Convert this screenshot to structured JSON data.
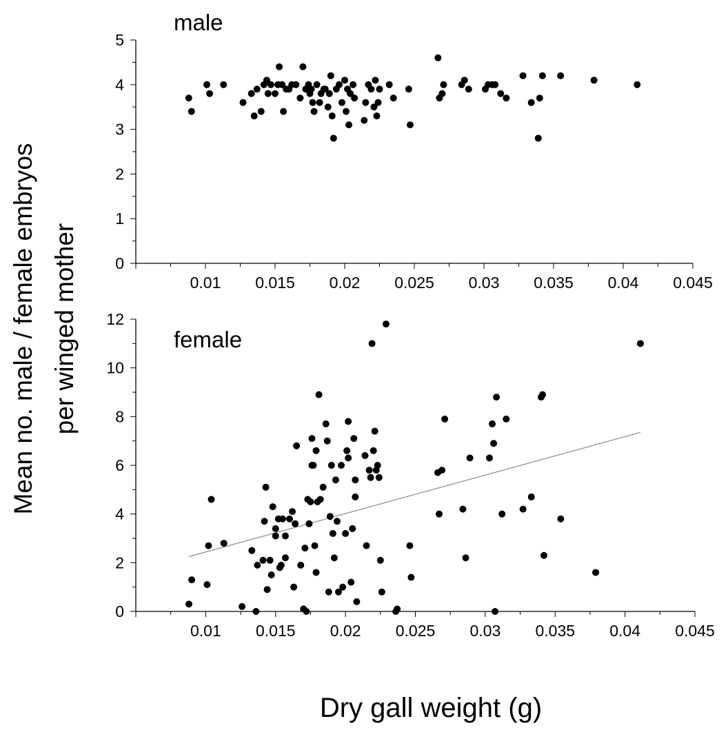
{
  "chart_data": {
    "type": "scatter",
    "xlabel": "Dry gall weight (g)",
    "ylabel": [
      "Mean no. male / female embryos",
      "per winged mother"
    ],
    "panels": [
      {
        "label": "male",
        "xlim": [
          0.005,
          0.045
        ],
        "xticks": [
          0.01,
          0.015,
          0.02,
          0.025,
          0.03,
          0.035,
          0.04,
          0.045
        ],
        "xtick_labels": [
          "0.01",
          "0.015",
          "0.02",
          "0.025",
          "0.03",
          "0.035",
          "0.04",
          "0.045"
        ],
        "ylim": [
          0,
          5
        ],
        "yticks": [
          0,
          1,
          2,
          3,
          4,
          5
        ],
        "ytick_labels": [
          "0",
          "1",
          "2",
          "3",
          "4",
          "5"
        ],
        "points": [
          [
            0.0088,
            3.7
          ],
          [
            0.009,
            3.4
          ],
          [
            0.0101,
            4.0
          ],
          [
            0.0103,
            3.8
          ],
          [
            0.0113,
            4.0
          ],
          [
            0.0127,
            3.6
          ],
          [
            0.0133,
            3.8
          ],
          [
            0.0135,
            3.3
          ],
          [
            0.0137,
            3.9
          ],
          [
            0.014,
            3.4
          ],
          [
            0.0142,
            4.0
          ],
          [
            0.0144,
            4.1
          ],
          [
            0.0145,
            3.8
          ],
          [
            0.0147,
            4.0
          ],
          [
            0.015,
            3.8
          ],
          [
            0.0152,
            4.0
          ],
          [
            0.0153,
            4.4
          ],
          [
            0.0155,
            4.0
          ],
          [
            0.0156,
            3.4
          ],
          [
            0.0158,
            3.9
          ],
          [
            0.016,
            3.9
          ],
          [
            0.0162,
            4.0
          ],
          [
            0.0165,
            4.0
          ],
          [
            0.0168,
            3.7
          ],
          [
            0.017,
            4.4
          ],
          [
            0.0172,
            3.9
          ],
          [
            0.0174,
            4.0
          ],
          [
            0.0175,
            3.8
          ],
          [
            0.0176,
            3.9
          ],
          [
            0.0177,
            3.6
          ],
          [
            0.0178,
            3.4
          ],
          [
            0.018,
            4.0
          ],
          [
            0.0182,
            3.6
          ],
          [
            0.0183,
            3.8
          ],
          [
            0.0185,
            3.9
          ],
          [
            0.0186,
            3.9
          ],
          [
            0.0188,
            3.5
          ],
          [
            0.0189,
            3.8
          ],
          [
            0.019,
            4.2
          ],
          [
            0.0191,
            3.3
          ],
          [
            0.0192,
            2.8
          ],
          [
            0.0194,
            3.9
          ],
          [
            0.0196,
            4.0
          ],
          [
            0.0198,
            3.6
          ],
          [
            0.02,
            4.1
          ],
          [
            0.0201,
            3.4
          ],
          [
            0.0202,
            3.9
          ],
          [
            0.0203,
            3.1
          ],
          [
            0.0204,
            3.8
          ],
          [
            0.0206,
            4.0
          ],
          [
            0.0207,
            3.7
          ],
          [
            0.0214,
            3.2
          ],
          [
            0.0215,
            3.6
          ],
          [
            0.0217,
            4.0
          ],
          [
            0.0219,
            3.9
          ],
          [
            0.0221,
            3.5
          ],
          [
            0.0222,
            4.1
          ],
          [
            0.0223,
            3.3
          ],
          [
            0.0224,
            3.6
          ],
          [
            0.0225,
            3.9
          ],
          [
            0.0232,
            4.0
          ],
          [
            0.0235,
            3.7
          ],
          [
            0.0246,
            3.9
          ],
          [
            0.0247,
            3.1
          ],
          [
            0.0267,
            4.6
          ],
          [
            0.0268,
            3.7
          ],
          [
            0.027,
            3.8
          ],
          [
            0.0271,
            4.0
          ],
          [
            0.0284,
            4.0
          ],
          [
            0.0286,
            4.1
          ],
          [
            0.0289,
            3.9
          ],
          [
            0.0301,
            3.9
          ],
          [
            0.0303,
            4.0
          ],
          [
            0.0306,
            4.0
          ],
          [
            0.0308,
            4.0
          ],
          [
            0.0312,
            3.8
          ],
          [
            0.0316,
            3.7
          ],
          [
            0.0328,
            4.2
          ],
          [
            0.0334,
            3.6
          ],
          [
            0.0339,
            2.8
          ],
          [
            0.034,
            3.7
          ],
          [
            0.0342,
            4.2
          ],
          [
            0.0355,
            4.2
          ],
          [
            0.0379,
            4.1
          ],
          [
            0.041,
            4.0
          ]
        ]
      },
      {
        "label": "female",
        "xlim": [
          0.005,
          0.045
        ],
        "xticks": [
          0.01,
          0.015,
          0.02,
          0.025,
          0.03,
          0.035,
          0.04,
          0.045
        ],
        "xtick_labels": [
          "0.01",
          "0.015",
          "0.02",
          "0.025",
          "0.03",
          "0.035",
          "0.04",
          "0.045"
        ],
        "ylim": [
          0,
          12
        ],
        "yticks": [
          0,
          2,
          4,
          6,
          8,
          10,
          12
        ],
        "ytick_labels": [
          "0",
          "2",
          "4",
          "6",
          "8",
          "10",
          "12"
        ],
        "points": [
          [
            0.0088,
            0.3
          ],
          [
            0.009,
            1.3
          ],
          [
            0.0101,
            1.1
          ],
          [
            0.0102,
            2.7
          ],
          [
            0.0104,
            4.6
          ],
          [
            0.0113,
            2.8
          ],
          [
            0.0126,
            0.2
          ],
          [
            0.0133,
            2.5
          ],
          [
            0.0136,
            0.0
          ],
          [
            0.0137,
            1.9
          ],
          [
            0.0141,
            2.1
          ],
          [
            0.0142,
            3.7
          ],
          [
            0.0143,
            5.1
          ],
          [
            0.0144,
            0.9
          ],
          [
            0.0146,
            2.1
          ],
          [
            0.0147,
            1.5
          ],
          [
            0.0148,
            4.3
          ],
          [
            0.015,
            3.4
          ],
          [
            0.015,
            3.1
          ],
          [
            0.0152,
            3.8
          ],
          [
            0.0153,
            1.8
          ],
          [
            0.0154,
            1.9
          ],
          [
            0.0155,
            3.8
          ],
          [
            0.0157,
            3.1
          ],
          [
            0.0157,
            2.2
          ],
          [
            0.016,
            3.8
          ],
          [
            0.0162,
            4.1
          ],
          [
            0.0163,
            1.0
          ],
          [
            0.0164,
            3.6
          ],
          [
            0.0165,
            6.8
          ],
          [
            0.0168,
            1.9
          ],
          [
            0.017,
            0.1
          ],
          [
            0.0171,
            2.6
          ],
          [
            0.0172,
            0.0
          ],
          [
            0.0173,
            4.6
          ],
          [
            0.0174,
            3.6
          ],
          [
            0.0175,
            4.5
          ],
          [
            0.0176,
            6.0
          ],
          [
            0.0176,
            7.1
          ],
          [
            0.0177,
            6.0
          ],
          [
            0.0178,
            2.7
          ],
          [
            0.0179,
            6.6
          ],
          [
            0.0179,
            1.6
          ],
          [
            0.018,
            4.5
          ],
          [
            0.0181,
            8.9
          ],
          [
            0.0182,
            4.6
          ],
          [
            0.0184,
            5.1
          ],
          [
            0.0186,
            7.7
          ],
          [
            0.0187,
            7.0
          ],
          [
            0.0188,
            0.8
          ],
          [
            0.0189,
            3.9
          ],
          [
            0.019,
            6.0
          ],
          [
            0.0191,
            3.2
          ],
          [
            0.0192,
            2.2
          ],
          [
            0.0193,
            5.4
          ],
          [
            0.0194,
            3.7
          ],
          [
            0.0195,
            0.8
          ],
          [
            0.0197,
            6.0
          ],
          [
            0.0198,
            1.0
          ],
          [
            0.02,
            3.2
          ],
          [
            0.0201,
            6.6
          ],
          [
            0.0202,
            6.3
          ],
          [
            0.0202,
            7.8
          ],
          [
            0.0204,
            1.2
          ],
          [
            0.0205,
            3.4
          ],
          [
            0.0206,
            7.1
          ],
          [
            0.0207,
            4.7
          ],
          [
            0.0207,
            5.4
          ],
          [
            0.0208,
            0.4
          ],
          [
            0.0214,
            6.4
          ],
          [
            0.0215,
            2.7
          ],
          [
            0.0217,
            5.8
          ],
          [
            0.0218,
            5.5
          ],
          [
            0.0219,
            11.0
          ],
          [
            0.022,
            6.6
          ],
          [
            0.0221,
            7.4
          ],
          [
            0.0222,
            5.8
          ],
          [
            0.0223,
            6.0
          ],
          [
            0.0224,
            5.5
          ],
          [
            0.0225,
            2.1
          ],
          [
            0.0226,
            0.8
          ],
          [
            0.0229,
            11.8
          ],
          [
            0.0236,
            0.0
          ],
          [
            0.0237,
            0.1
          ],
          [
            0.0246,
            2.7
          ],
          [
            0.0247,
            1.4
          ],
          [
            0.0266,
            5.7
          ],
          [
            0.0267,
            4.0
          ],
          [
            0.0269,
            5.8
          ],
          [
            0.0271,
            7.9
          ],
          [
            0.0284,
            4.2
          ],
          [
            0.0286,
            2.2
          ],
          [
            0.0289,
            6.3
          ],
          [
            0.0303,
            6.3
          ],
          [
            0.0305,
            7.7
          ],
          [
            0.0306,
            6.9
          ],
          [
            0.0307,
            0.0
          ],
          [
            0.0308,
            8.8
          ],
          [
            0.0312,
            4.0
          ],
          [
            0.0315,
            7.9
          ],
          [
            0.0327,
            4.2
          ],
          [
            0.0333,
            4.7
          ],
          [
            0.034,
            8.8
          ],
          [
            0.0341,
            8.9
          ],
          [
            0.0342,
            2.3
          ],
          [
            0.0354,
            3.8
          ],
          [
            0.0379,
            1.6
          ],
          [
            0.0411,
            11.0
          ]
        ],
        "trendline": {
          "x": [
            0.0088,
            0.0411
          ],
          "y": [
            2.25,
            7.35
          ]
        }
      }
    ]
  }
}
